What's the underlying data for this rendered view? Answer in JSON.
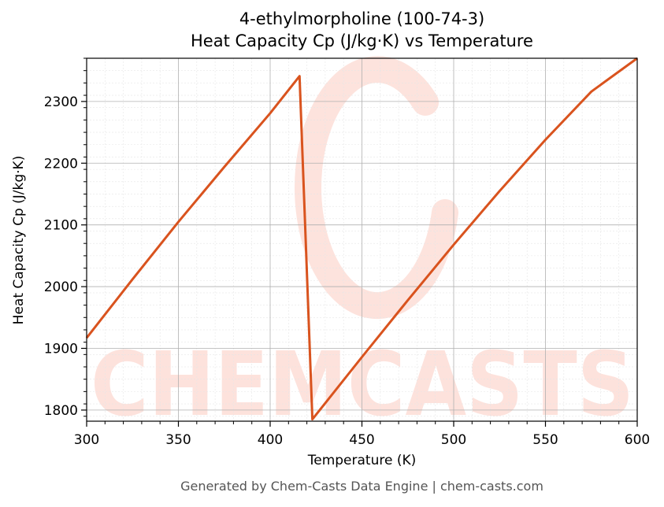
{
  "chart_data": {
    "type": "line",
    "title_line1": "4-ethylmorpholine (100-74-3)",
    "title_line2": "Heat Capacity Cp (J/kg·K) vs Temperature",
    "xlabel": "Temperature (K)",
    "ylabel": "Heat Capacity Cp (J/kg·K)",
    "xlim": [
      300,
      600
    ],
    "ylim": [
      1782,
      2370
    ],
    "xticks": [
      300,
      350,
      400,
      450,
      500,
      550,
      600
    ],
    "yticks": [
      1800,
      1900,
      2000,
      2100,
      2200,
      2300
    ],
    "grid": true,
    "series": [
      {
        "color": "#d9531e",
        "x": [
          300,
          325,
          350,
          375,
          400,
          416,
          423,
          450,
          475,
          500,
          525,
          550,
          575,
          600
        ],
        "y": [
          1917,
          2012,
          2105,
          2194,
          2281,
          2341,
          1785,
          1886,
          1978,
          2068,
          2155,
          2238,
          2316,
          2370
        ]
      }
    ],
    "watermark": "CHEMCASTS",
    "footer": "Generated by Chem-Casts Data Engine | chem-casts.com"
  }
}
